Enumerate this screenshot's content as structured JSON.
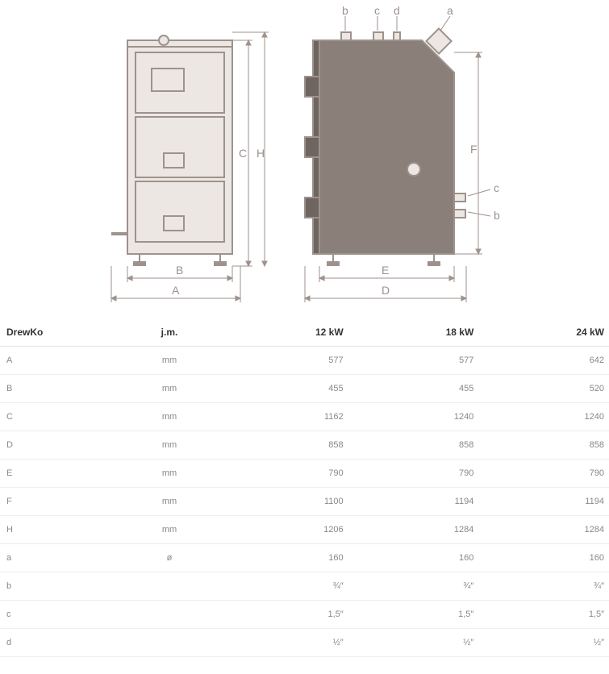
{
  "diagram": {
    "stroke": "#9e928c",
    "fill_light": "#ece7e3",
    "fill_dark": "#8a7f79",
    "labels_front": [
      "A",
      "B",
      "C",
      "H"
    ],
    "labels_side": [
      "D",
      "E",
      "F",
      "a",
      "b",
      "c",
      "d"
    ],
    "label_a_top": "a",
    "label_b_top": "b",
    "label_c_top": "c",
    "label_d_top": "d",
    "label_b_side": "b",
    "label_c_side": "c"
  },
  "table": {
    "headers": [
      "DrewKo",
      "j.m.",
      "12 kW",
      "18 kW",
      "24 kW"
    ],
    "rows": [
      {
        "label": "A",
        "unit": "mm",
        "v": [
          "577",
          "577",
          "642"
        ]
      },
      {
        "label": "B",
        "unit": "mm",
        "v": [
          "455",
          "455",
          "520"
        ]
      },
      {
        "label": "C",
        "unit": "mm",
        "v": [
          "1162",
          "1240",
          "1240"
        ]
      },
      {
        "label": "D",
        "unit": "mm",
        "v": [
          "858",
          "858",
          "858"
        ]
      },
      {
        "label": "E",
        "unit": "mm",
        "v": [
          "790",
          "790",
          "790"
        ]
      },
      {
        "label": "F",
        "unit": "mm",
        "v": [
          "1100",
          "1194",
          "1194"
        ]
      },
      {
        "label": "H",
        "unit": "mm",
        "v": [
          "1206",
          "1284",
          "1284"
        ]
      },
      {
        "label": "a",
        "unit": "ø",
        "v": [
          "160",
          "160",
          "160"
        ]
      },
      {
        "label": "b",
        "unit": "",
        "v": [
          "¾″",
          "¾″",
          "¾″"
        ]
      },
      {
        "label": "c",
        "unit": "",
        "v": [
          "1,5″",
          "1,5″",
          "1,5″"
        ]
      },
      {
        "label": "d",
        "unit": "",
        "v": [
          "½″",
          "½″",
          "½″"
        ]
      }
    ]
  }
}
